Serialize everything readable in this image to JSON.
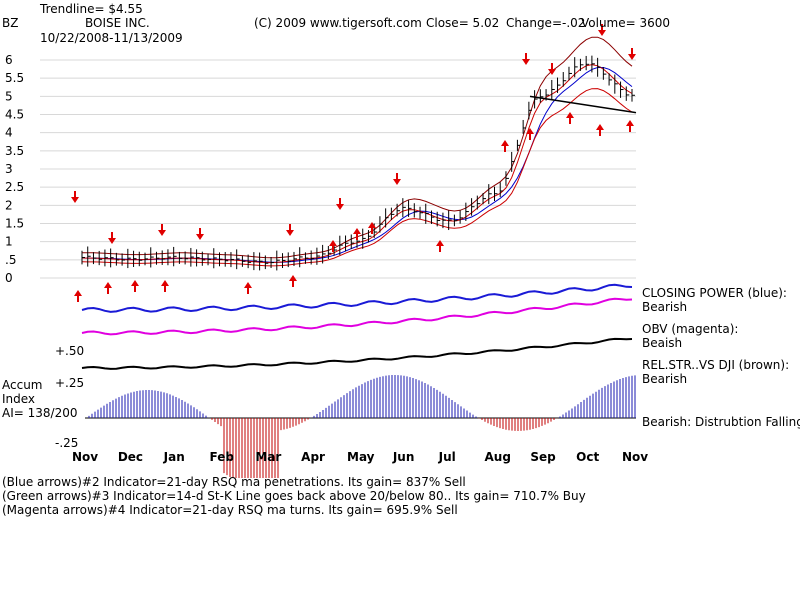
{
  "header": {
    "trendline": "Trendline= $4.55",
    "symbol": "BZ",
    "company": "BOISE INC.",
    "date_range": "10/22/2008-11/13/2009",
    "copyright": "(C) 2009 www.tigersoft.com",
    "close": "Close=  5.02",
    "change": "Change=-.02",
    "volume": "Volume=  3600"
  },
  "side_labels": {
    "closing_power_1": "CLOSING POWER (blue):",
    "closing_power_2": "Bearish",
    "obv_1": "OBV (magenta):",
    "obv_2": "Beaish",
    "relstr_1": "REL.STR..VS DJI (brown):",
    "relstr_2": "Bearish",
    "accum_status": "Bearish:  Distrubtion Falling.",
    "accum_title_1": "Accum",
    "accum_title_2": "Index",
    "accum_ai": "AI= 138/200",
    "ref_plus50": "+.50",
    "ref_plus25": "+.25",
    "ref_minus25": "-.25"
  },
  "footer": {
    "line1": "(Blue arrows)#2 Indicator=21-day RSQ ma penetrations. Its gain= 837% Sell",
    "line2": "(Green arrows)#3 Indicator=14-d St-K Line goes back above 20/below 80.. Its gain= 710.7% Buy",
    "line3": "(Magenta arrows)#4 Indicator=21-day RSQ ma turns. Its gain= 695.9% Sell"
  },
  "colors": {
    "price_bars": "#000000",
    "ma_red": "#cc0000",
    "ma_blue": "#0000cc",
    "band_brown": "#8b0000",
    "closing_power": "#1a1ad6",
    "obv": "#e000e0",
    "rel_str": "#000000",
    "accum_pos": "#1a1ab0",
    "accum_neg": "#c00000",
    "sell_arrow": "#e00000",
    "buy_arrow": "#e00000"
  },
  "chart_data": {
    "type": "line",
    "title": "BOISE INC.",
    "x": [
      "Nov",
      "Dec",
      "Jan",
      "Feb",
      "Mar",
      "Apr",
      "May",
      "Jun",
      "Jul",
      "Aug",
      "Sep",
      "Oct",
      "Nov"
    ],
    "y_ticks": [
      "6",
      "5.5",
      "5",
      "4.5",
      "4",
      "3.5",
      "3",
      "2.5",
      "2",
      "1.5",
      "1",
      ".5",
      "0"
    ],
    "ylim": [
      0,
      6.5
    ],
    "series": [
      {
        "values": [
          0.55,
          0.5,
          0.55,
          0.5,
          0.42,
          0.55,
          1.0,
          1.9,
          1.55,
          2.3,
          5.0,
          5.9,
          5.02
        ]
      }
    ],
    "trendline": 4.55,
    "grid": true
  }
}
